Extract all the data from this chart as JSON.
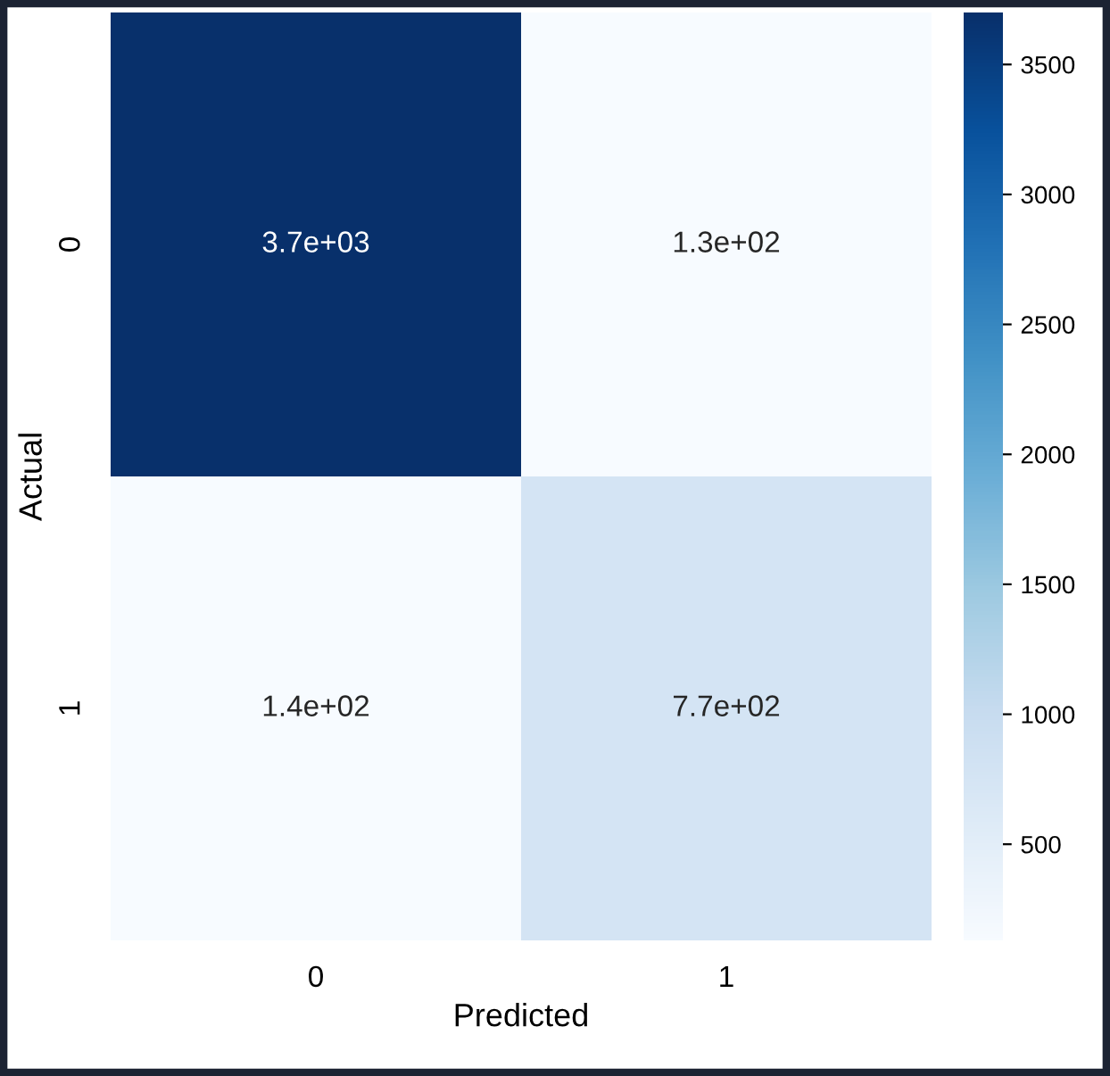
{
  "chart_data": {
    "type": "heatmap",
    "xlabel": "Predicted",
    "ylabel": "Actual",
    "categories": [
      "0",
      "1"
    ],
    "y_categories": [
      "0",
      "1"
    ],
    "cells": [
      [
        3700,
        130
      ],
      [
        140,
        770
      ]
    ],
    "cell_labels": [
      [
        "3.7e+03",
        "1.3e+02"
      ],
      [
        "1.4e+02",
        "7.7e+02"
      ]
    ],
    "clim": [
      130,
      3700
    ],
    "cticks": [
      500,
      1000,
      1500,
      2000,
      2500,
      3000,
      3500
    ]
  }
}
